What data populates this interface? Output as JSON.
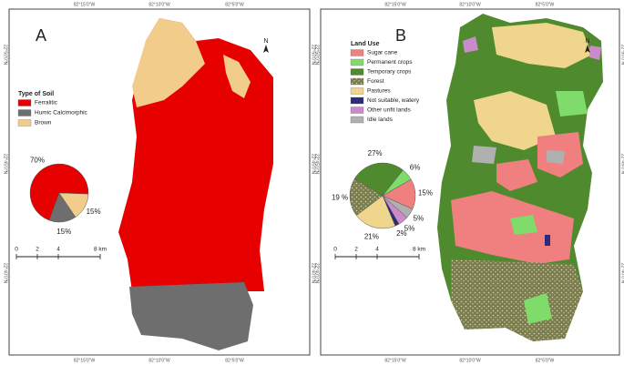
{
  "panels": [
    {
      "label": "A",
      "north": "N",
      "legend_title": "Type of Soil",
      "legend": [
        {
          "name": "Ferralitic",
          "color": "#e60000"
        },
        {
          "name": "Humic Calcimorphic",
          "color": "#6e6e6e"
        },
        {
          "name": "Brown",
          "color": "#f2cc8a"
        }
      ],
      "pie": {
        "values": [
          70,
          15,
          15
        ],
        "value_labels": [
          "70%",
          "15%",
          "15%"
        ]
      },
      "scale": [
        0,
        2,
        4,
        {
          "value": 8,
          "label": "8 km"
        }
      ],
      "top_coords": [
        "82°15'0\"W",
        "82°10'0\"W",
        "82°5'0\"W"
      ],
      "bottom_coords": [
        "82°15'0\"W",
        "82°10'0\"W",
        "82°5'0\"W"
      ],
      "left_coords": [
        "22°50'0\"N",
        "22°45'0\"N",
        "22°40'0\"N"
      ],
      "right_coords": [
        "22°50'0\"N",
        "22°45'0\"N",
        "22°40'0\"N"
      ]
    },
    {
      "label": "B",
      "north": "N",
      "legend_title": "Land Use",
      "legend": [
        {
          "name": "Sugar cane",
          "color": "#f08080"
        },
        {
          "name": "Permanent crops",
          "color": "#7fdc6a"
        },
        {
          "name": "Temporary crops",
          "color": "#4f8a2e"
        },
        {
          "name": "Forest",
          "color": "#7b7d4e"
        },
        {
          "name": "Pastures",
          "color": "#f0d58c"
        },
        {
          "name": "Not suitable, watery",
          "color": "#2b2b7a"
        },
        {
          "name": "Other unfit lands",
          "color": "#c98bc9"
        },
        {
          "name": "Idle lands",
          "color": "#b0b0b0"
        }
      ],
      "pie": {
        "values": [
          15,
          6,
          27,
          19,
          21,
          2,
          5,
          5
        ],
        "value_labels": [
          "15%",
          "6%",
          "27%",
          "19 %",
          "21%",
          "2%",
          "5%",
          "5%"
        ]
      },
      "scale": [
        0,
        2,
        4,
        {
          "value": 8,
          "label": "8 km"
        }
      ],
      "top_coords": [
        "82°15'0\"W",
        "82°10'0\"W",
        "82°5'0\"W"
      ],
      "bottom_coords": [
        "82°15'0\"W",
        "82°10'0\"W",
        "82°5'0\"W"
      ],
      "left_coords": [
        "22°50'0\"N",
        "22°45'0\"N",
        "22°40'0\"N"
      ],
      "right_coords": [
        "22°50'0\"N",
        "22°45'0\"N",
        "22°40'0\"N"
      ]
    }
  ]
}
